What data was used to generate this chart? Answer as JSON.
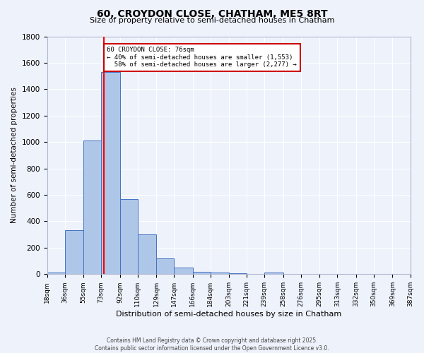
{
  "title": "60, CROYDON CLOSE, CHATHAM, ME5 8RT",
  "subtitle": "Size of property relative to semi-detached houses in Chatham",
  "xlabel": "Distribution of semi-detached houses by size in Chatham",
  "ylabel": "Number of semi-detached properties",
  "footnote1": "Contains HM Land Registry data © Crown copyright and database right 2025.",
  "footnote2": "Contains public sector information licensed under the Open Government Licence v3.0.",
  "bin_edges": [
    18,
    36,
    55,
    73,
    92,
    110,
    129,
    147,
    166,
    184,
    203,
    221,
    239,
    258,
    276,
    295,
    313,
    332,
    350,
    369,
    387
  ],
  "bar_heights": [
    15,
    335,
    1010,
    1530,
    570,
    300,
    120,
    50,
    20,
    10,
    5,
    0,
    10,
    0,
    0,
    0,
    0,
    0,
    0,
    0
  ],
  "bar_color": "#aec6e8",
  "bar_edge_color": "#4472c4",
  "background_color": "#eef2fb",
  "grid_color": "#ffffff",
  "red_line_x": 76,
  "annotation_text": "60 CROYDON CLOSE: 76sqm\n← 40% of semi-detached houses are smaller (1,553)\n  58% of semi-detached houses are larger (2,277) →",
  "annotation_box_color": "#ffffff",
  "annotation_box_edge_color": "#cc0000",
  "ylim": [
    0,
    1800
  ],
  "yticks": [
    0,
    200,
    400,
    600,
    800,
    1000,
    1200,
    1400,
    1600,
    1800
  ]
}
